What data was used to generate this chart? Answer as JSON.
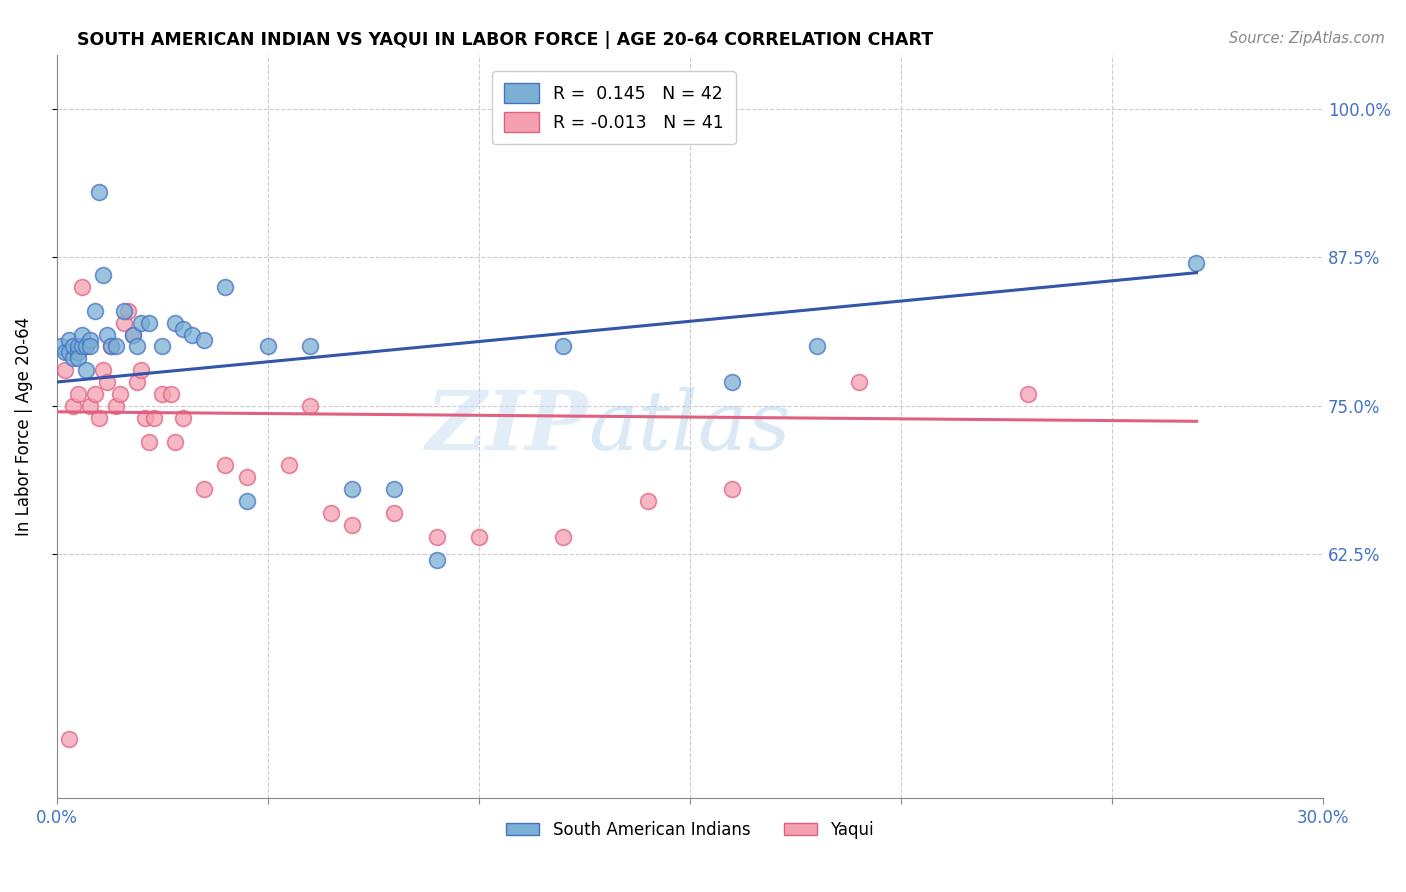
{
  "title": "SOUTH AMERICAN INDIAN VS YAQUI IN LABOR FORCE | AGE 20-64 CORRELATION CHART",
  "source": "Source: ZipAtlas.com",
  "ylabel": "In Labor Force | Age 20-64",
  "xlim": [
    0.0,
    0.3
  ],
  "ylim": [
    0.42,
    1.045
  ],
  "xticks": [
    0.0,
    0.05,
    0.1,
    0.15,
    0.2,
    0.25,
    0.3
  ],
  "xticklabels": [
    "0.0%",
    "",
    "",
    "",
    "",
    "",
    "30.0%"
  ],
  "yticks": [
    0.625,
    0.75,
    0.875,
    1.0
  ],
  "yticklabels": [
    "62.5%",
    "75.0%",
    "87.5%",
    "100.0%"
  ],
  "blue_R": 0.145,
  "blue_N": 42,
  "pink_R": -0.013,
  "pink_N": 41,
  "blue_color": "#7BAFD4",
  "pink_color": "#F4A0B0",
  "blue_edge_color": "#4472C4",
  "pink_edge_color": "#E06080",
  "blue_line_color": "#3355AA",
  "pink_line_color": "#E06080",
  "watermark_color": "#C8DCF0",
  "legend_label_blue": "South American Indians",
  "legend_label_pink": "Yaqui",
  "blue_line_x0": 0.0,
  "blue_line_x1": 0.27,
  "blue_line_y0": 0.77,
  "blue_line_y1": 0.862,
  "pink_line_x0": 0.0,
  "pink_line_x1": 0.27,
  "pink_line_y0": 0.745,
  "pink_line_y1": 0.737,
  "blue_x": [
    0.001,
    0.002,
    0.003,
    0.003,
    0.004,
    0.004,
    0.005,
    0.005,
    0.005,
    0.006,
    0.006,
    0.007,
    0.007,
    0.008,
    0.008,
    0.009,
    0.01,
    0.011,
    0.012,
    0.013,
    0.014,
    0.016,
    0.018,
    0.019,
    0.02,
    0.022,
    0.025,
    0.028,
    0.03,
    0.032,
    0.035,
    0.04,
    0.045,
    0.05,
    0.06,
    0.07,
    0.08,
    0.09,
    0.12,
    0.18,
    0.27,
    0.16
  ],
  "blue_y": [
    0.8,
    0.795,
    0.805,
    0.795,
    0.79,
    0.8,
    0.795,
    0.8,
    0.79,
    0.8,
    0.81,
    0.8,
    0.78,
    0.805,
    0.8,
    0.83,
    0.93,
    0.86,
    0.81,
    0.8,
    0.8,
    0.83,
    0.81,
    0.8,
    0.82,
    0.82,
    0.8,
    0.82,
    0.815,
    0.81,
    0.805,
    0.85,
    0.67,
    0.8,
    0.8,
    0.68,
    0.68,
    0.62,
    0.8,
    0.8,
    0.87,
    0.77
  ],
  "pink_x": [
    0.002,
    0.003,
    0.004,
    0.005,
    0.006,
    0.007,
    0.008,
    0.009,
    0.01,
    0.011,
    0.012,
    0.013,
    0.014,
    0.015,
    0.016,
    0.017,
    0.018,
    0.019,
    0.02,
    0.021,
    0.022,
    0.023,
    0.025,
    0.027,
    0.028,
    0.03,
    0.035,
    0.04,
    0.045,
    0.055,
    0.06,
    0.065,
    0.07,
    0.08,
    0.09,
    0.1,
    0.12,
    0.14,
    0.16,
    0.19,
    0.23
  ],
  "pink_y": [
    0.78,
    0.47,
    0.75,
    0.76,
    0.85,
    0.8,
    0.75,
    0.76,
    0.74,
    0.78,
    0.77,
    0.8,
    0.75,
    0.76,
    0.82,
    0.83,
    0.81,
    0.77,
    0.78,
    0.74,
    0.72,
    0.74,
    0.76,
    0.76,
    0.72,
    0.74,
    0.68,
    0.7,
    0.69,
    0.7,
    0.75,
    0.66,
    0.65,
    0.66,
    0.64,
    0.64,
    0.64,
    0.67,
    0.68,
    0.77,
    0.76
  ]
}
